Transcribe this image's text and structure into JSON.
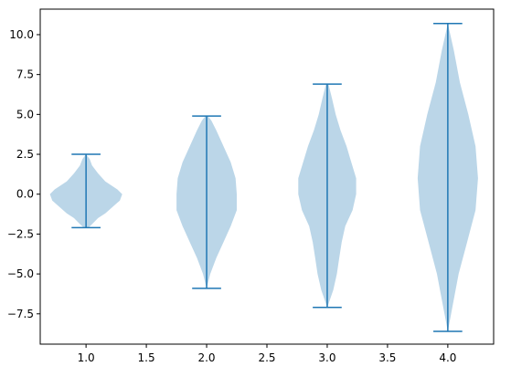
{
  "chart_data": {
    "type": "violin",
    "title": "",
    "xlabel": "",
    "ylabel": "",
    "xlim": [
      0.62,
      4.38
    ],
    "ylim": [
      -9.4,
      11.6
    ],
    "x_ticks": [
      1.0,
      1.5,
      2.0,
      2.5,
      3.0,
      3.5,
      4.0
    ],
    "x_tick_labels": [
      "1.0",
      "1.5",
      "2.0",
      "2.5",
      "3.0",
      "3.5",
      "4.0"
    ],
    "y_ticks": [
      -7.5,
      -5.0,
      -2.5,
      0.0,
      2.5,
      5.0,
      7.5,
      10.0
    ],
    "y_tick_labels": [
      "−7.5",
      "−5.0",
      "−2.5",
      "0.0",
      "2.5",
      "5.0",
      "7.5",
      "10.0"
    ],
    "grid": false,
    "colors": {
      "body": "#1f77b4",
      "lines": "#1f77b4",
      "body_alpha": 0.3
    },
    "series": [
      {
        "position": 1.0,
        "min": -2.1,
        "max": 2.5,
        "density": [
          [
            -2.1,
            0.02
          ],
          [
            -1.8,
            0.06
          ],
          [
            -1.5,
            0.1
          ],
          [
            -1.2,
            0.16
          ],
          [
            -0.8,
            0.22
          ],
          [
            -0.4,
            0.28
          ],
          [
            0.0,
            0.3
          ],
          [
            0.3,
            0.26
          ],
          [
            0.8,
            0.16
          ],
          [
            1.3,
            0.1
          ],
          [
            1.8,
            0.05
          ],
          [
            2.2,
            0.03
          ],
          [
            2.5,
            0.0
          ]
        ]
      },
      {
        "position": 2.0,
        "min": -5.9,
        "max": 4.9,
        "density": [
          [
            -5.9,
            0.0
          ],
          [
            -5.0,
            0.03
          ],
          [
            -4.0,
            0.08
          ],
          [
            -3.0,
            0.14
          ],
          [
            -2.0,
            0.2
          ],
          [
            -1.0,
            0.25
          ],
          [
            0.0,
            0.25
          ],
          [
            1.0,
            0.24
          ],
          [
            2.0,
            0.2
          ],
          [
            3.0,
            0.14
          ],
          [
            4.0,
            0.08
          ],
          [
            4.6,
            0.04
          ],
          [
            4.9,
            0.01
          ]
        ]
      },
      {
        "position": 3.0,
        "min": -7.1,
        "max": 6.9,
        "density": [
          [
            -7.1,
            0.0
          ],
          [
            -6.0,
            0.05
          ],
          [
            -5.0,
            0.08
          ],
          [
            -4.0,
            0.1
          ],
          [
            -3.0,
            0.12
          ],
          [
            -2.0,
            0.15
          ],
          [
            -1.0,
            0.21
          ],
          [
            0.0,
            0.24
          ],
          [
            1.0,
            0.24
          ],
          [
            2.0,
            0.2
          ],
          [
            3.0,
            0.16
          ],
          [
            4.0,
            0.11
          ],
          [
            5.0,
            0.07
          ],
          [
            6.0,
            0.04
          ],
          [
            6.9,
            0.01
          ]
        ]
      },
      {
        "position": 4.0,
        "min": -8.6,
        "max": 10.7,
        "density": [
          [
            -8.6,
            0.0
          ],
          [
            -7.0,
            0.04
          ],
          [
            -5.0,
            0.09
          ],
          [
            -3.0,
            0.16
          ],
          [
            -1.0,
            0.23
          ],
          [
            1.0,
            0.25
          ],
          [
            3.0,
            0.23
          ],
          [
            5.0,
            0.17
          ],
          [
            7.0,
            0.1
          ],
          [
            9.0,
            0.05
          ],
          [
            10.7,
            0.0
          ]
        ]
      }
    ]
  }
}
